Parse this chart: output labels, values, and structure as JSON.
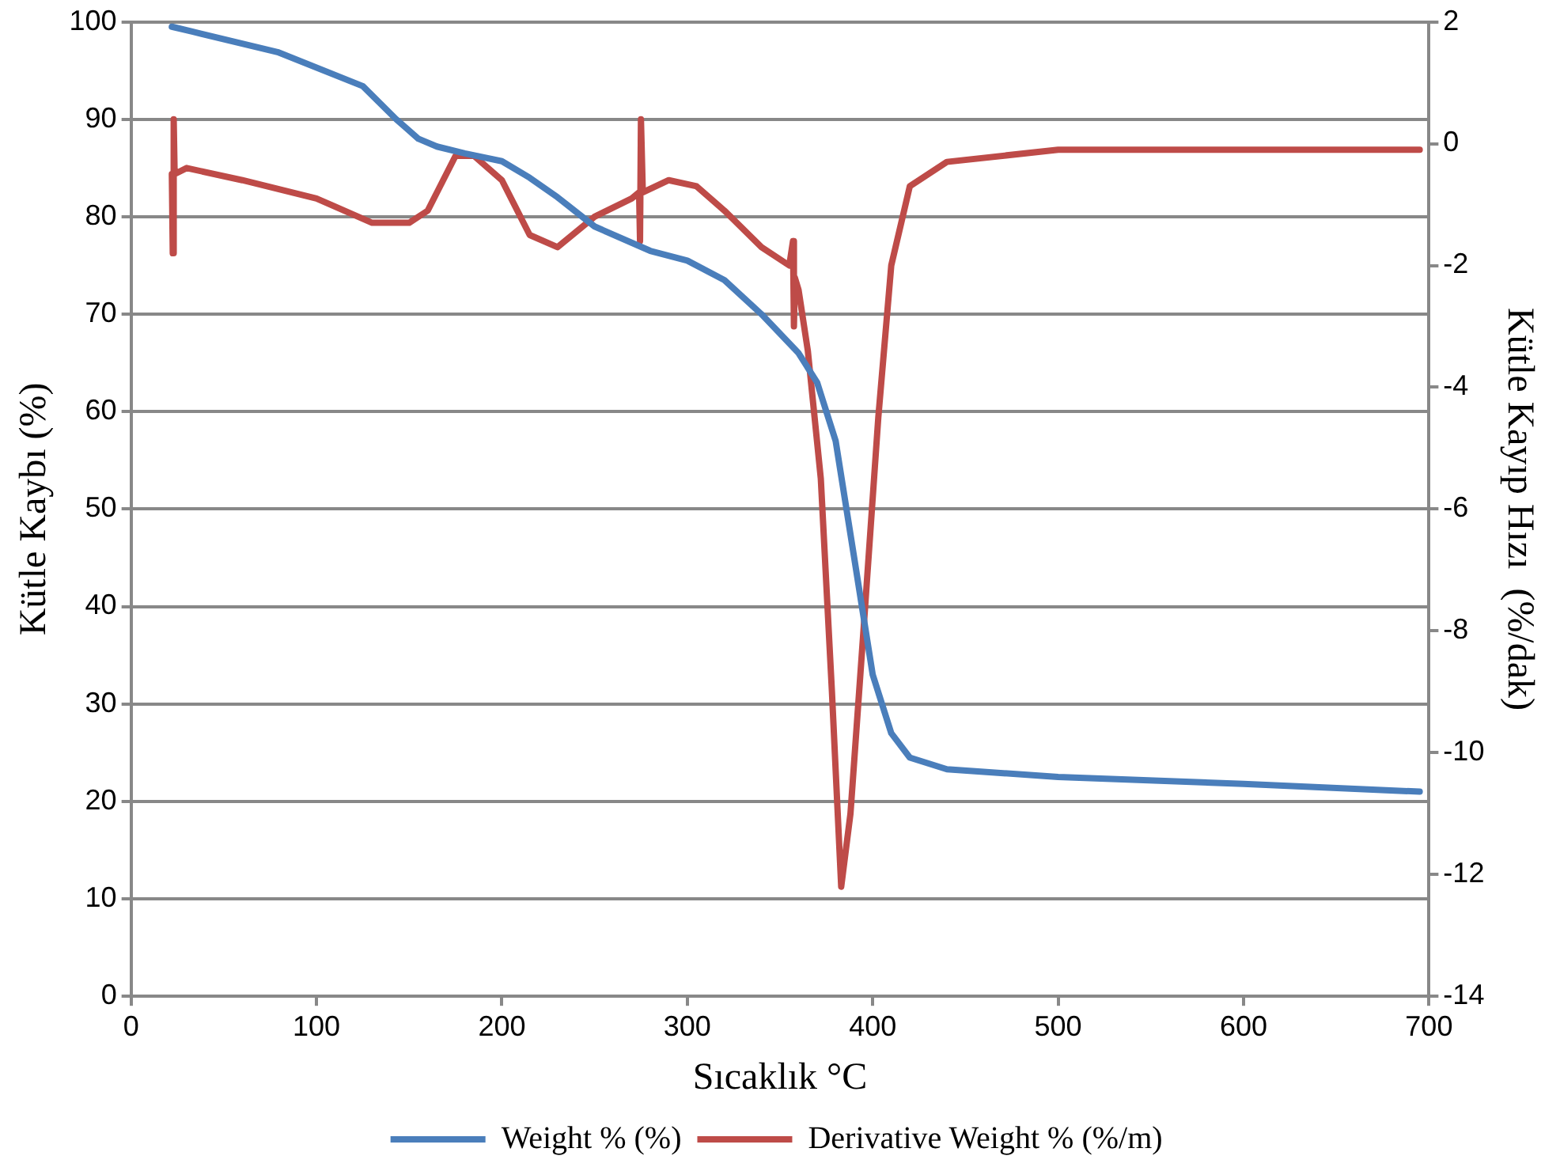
{
  "chart_data": {
    "type": "line",
    "xlabel": "Sıcaklık °C",
    "ylabel": "Kütle Kaybı (%)",
    "y2label": "Kütle Kayıp Hızı  (%/dak)",
    "xlim": [
      0,
      700
    ],
    "xticks": [
      0,
      100,
      200,
      300,
      400,
      500,
      600,
      700
    ],
    "ylim": [
      0,
      100
    ],
    "yticks": [
      0,
      10,
      20,
      30,
      40,
      50,
      60,
      70,
      80,
      90,
      100
    ],
    "y2lim": [
      -14,
      2
    ],
    "y2ticks": [
      -14,
      -12,
      -10,
      -8,
      -6,
      -4,
      -2,
      0,
      2
    ],
    "grid": "y",
    "legend": "bottom",
    "marker": "none",
    "line_style": "solid",
    "series": [
      {
        "name": "Weight % (%)",
        "color": "#4a7ebb",
        "x": [
          22,
          33,
          79,
          125,
          143,
          155,
          165,
          180,
          200,
          215,
          230,
          250,
          280,
          300,
          320,
          340,
          360,
          370,
          380,
          390,
          400,
          410,
          420,
          440,
          500,
          600,
          695
        ],
        "values": [
          99.5,
          99,
          96.9,
          93.4,
          90,
          88,
          87.2,
          86.5,
          85.7,
          84,
          82,
          79,
          76.5,
          75.5,
          73.5,
          70,
          66,
          63,
          57,
          45,
          33,
          27,
          24.5,
          23.3,
          22.5,
          21.8,
          21
        ]
      },
      {
        "name": "Derivative Weight % (%/m)",
        "color": "#be4b48",
        "axis": "y2",
        "x": [
          22,
          22.5,
          23,
          23.5,
          30,
          60,
          100,
          130,
          150,
          160,
          175,
          185,
          200,
          215,
          230,
          250,
          270,
          274,
          274.5,
          275,
          276,
          290,
          305,
          320,
          340,
          355,
          357,
          357.5,
          358,
          360,
          365,
          372,
          378,
          383,
          388,
          395,
          403,
          410,
          420,
          440,
          500,
          600,
          695
        ],
        "values": [
          -0.5,
          -1.8,
          0.4,
          -0.5,
          -0.4,
          -0.6,
          -0.9,
          -1.3,
          -1.3,
          -1.1,
          -0.2,
          -0.2,
          -0.6,
          -1.5,
          -1.7,
          -1.2,
          -0.9,
          -0.8,
          -1.6,
          0.4,
          -0.8,
          -0.6,
          -0.7,
          -1.1,
          -1.7,
          -2.0,
          -1.6,
          -3.0,
          -2.2,
          -2.4,
          -3.4,
          -5.5,
          -9,
          -12.2,
          -11,
          -8,
          -4.5,
          -2,
          -0.7,
          -0.3,
          -0.1,
          -0.1,
          -0.1
        ]
      }
    ]
  }
}
